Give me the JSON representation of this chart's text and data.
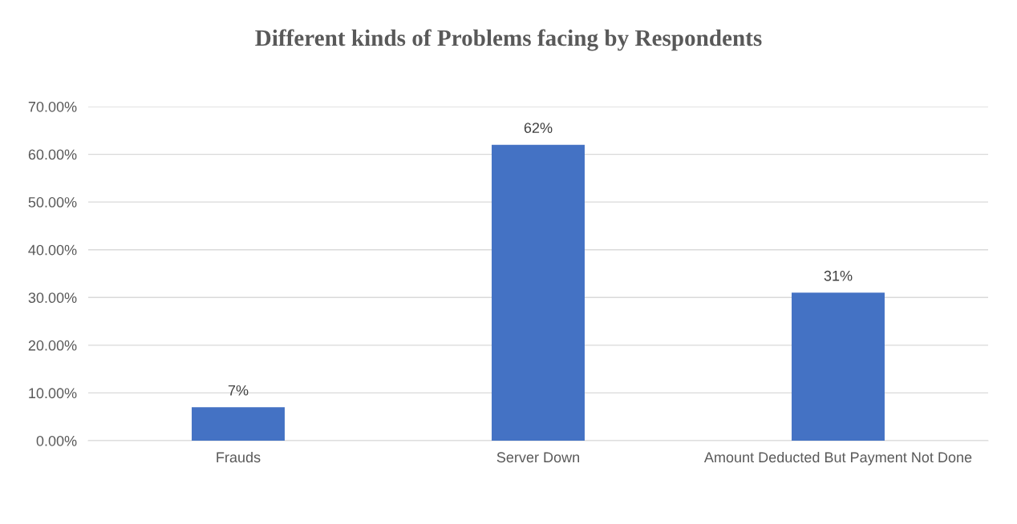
{
  "chart_data": {
    "type": "bar",
    "title": "Different kinds of Problems facing by Respondents",
    "categories": [
      "Frauds",
      "Server Down",
      "Amount Deducted But Payment Not Done"
    ],
    "values": [
      7,
      62,
      31
    ],
    "value_labels": [
      "7%",
      "62%",
      "31%"
    ],
    "color": "#4472c4",
    "ylim": [
      0,
      70
    ],
    "yticks": [
      {
        "value": 0,
        "label": "0.00%"
      },
      {
        "value": 10,
        "label": "10.00%"
      },
      {
        "value": 20,
        "label": "20.00%"
      },
      {
        "value": 30,
        "label": "30.00%"
      },
      {
        "value": 40,
        "label": "40.00%"
      },
      {
        "value": 50,
        "label": "50.00%"
      },
      {
        "value": 60,
        "label": "60.00%"
      },
      {
        "value": 70,
        "label": "70.00%"
      }
    ],
    "grid": "y",
    "legend": false
  }
}
